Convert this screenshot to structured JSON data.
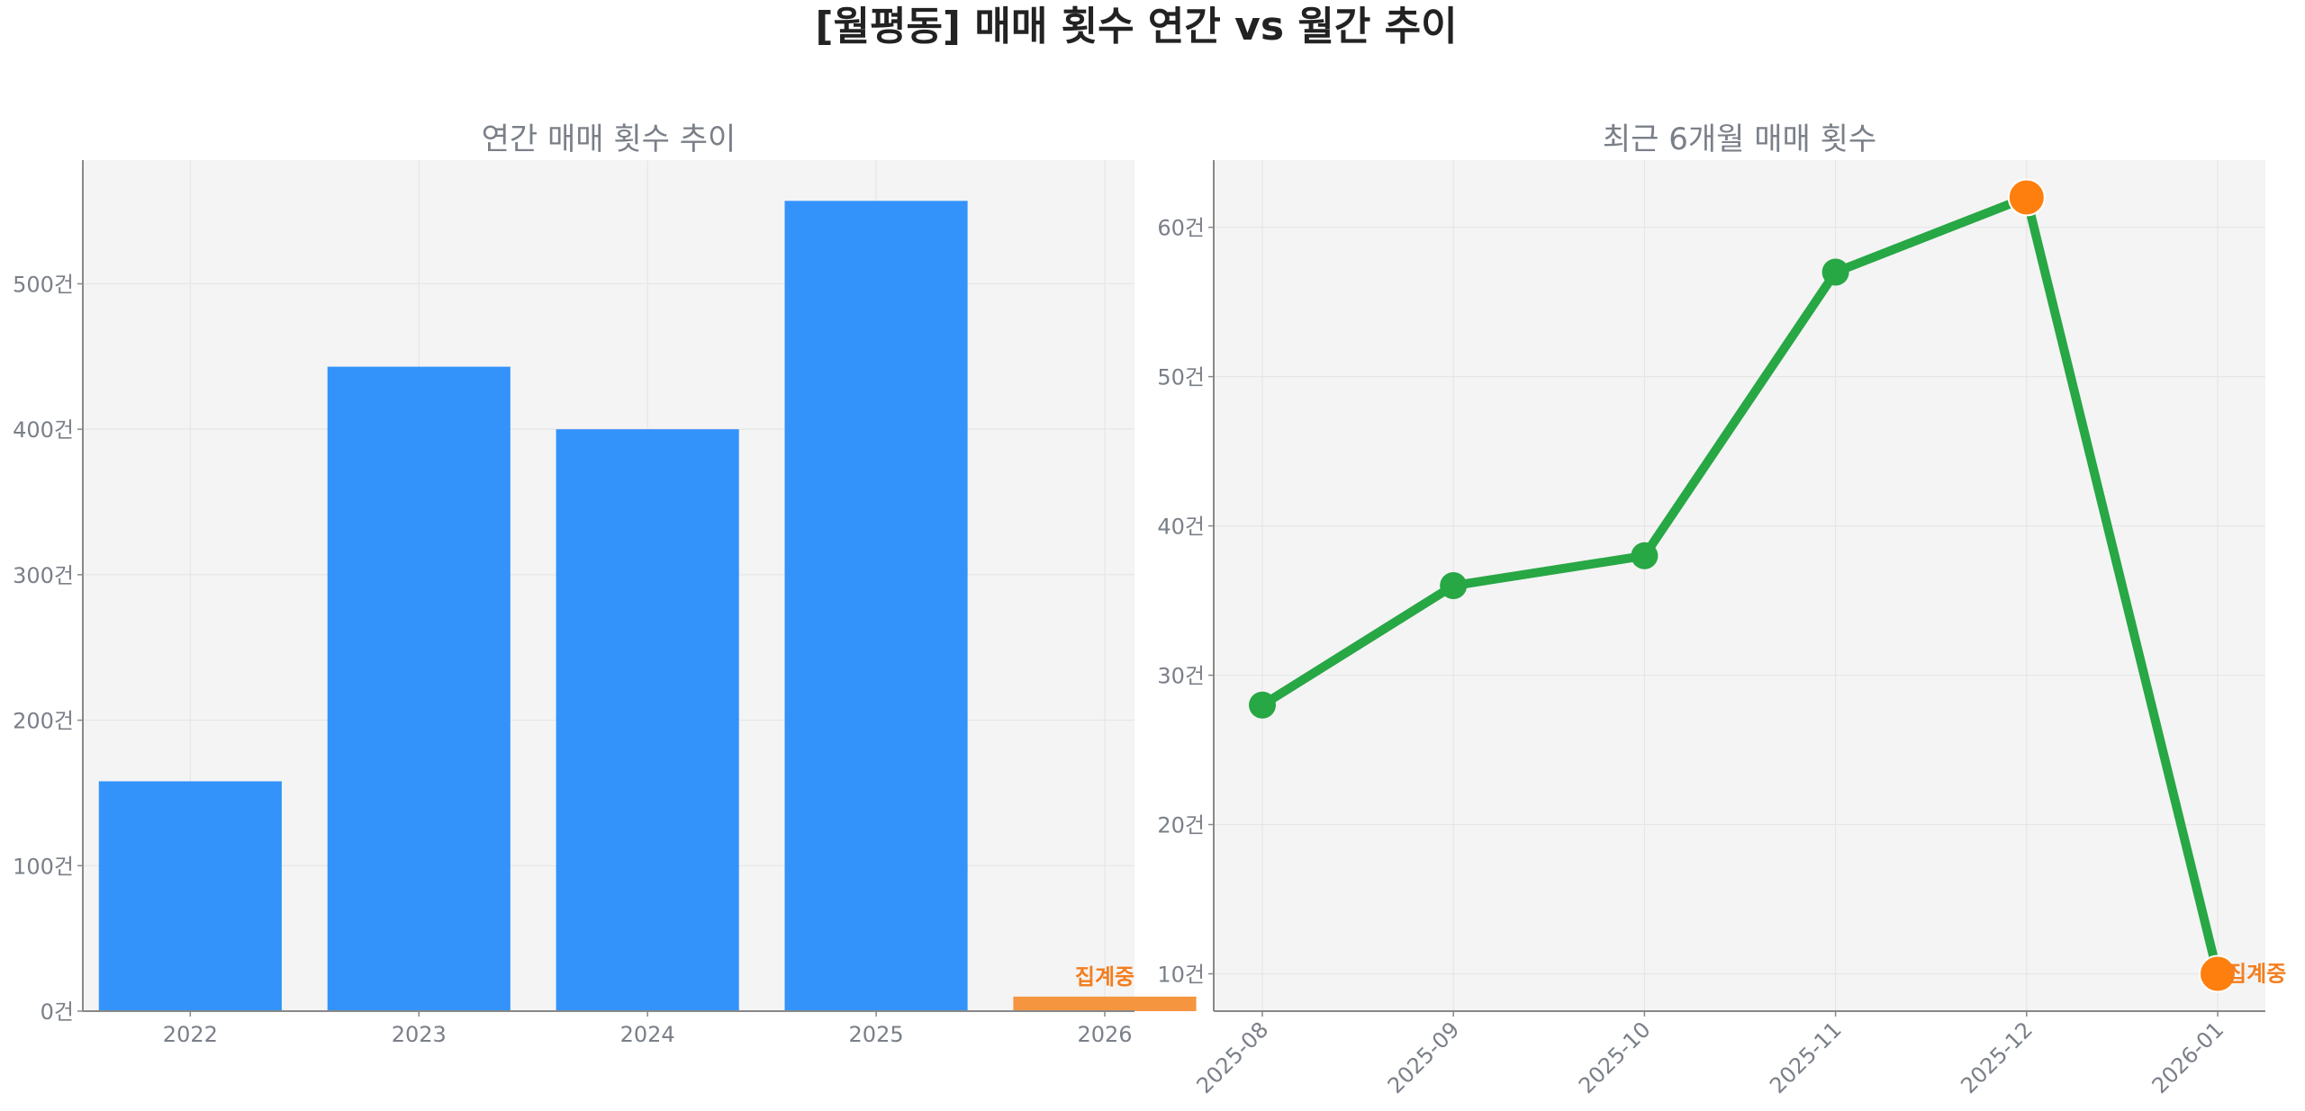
{
  "figure": {
    "title": "[월평동] 매매 횟수 연간 vs 월간 추이"
  },
  "colors": {
    "bar": "#3393fb",
    "bar_partial": "#f5953f",
    "line": "#28a745",
    "highlight": "#ff7f0e",
    "panel_bg": "#f4f4f4"
  },
  "chart_data": [
    {
      "type": "bar",
      "title": "연간 매매 횟수 추이",
      "categories": [
        "2022",
        "2023",
        "2024",
        "2025",
        "2026"
      ],
      "values": [
        158,
        443,
        400,
        557,
        10
      ],
      "ylim": [
        0,
        585
      ],
      "yticks": [
        0,
        100,
        200,
        300,
        400,
        500
      ],
      "ytick_suffix": "건",
      "grid": true,
      "annotation": {
        "category": "2026",
        "text": "집계중"
      }
    },
    {
      "type": "line",
      "title": "최근 6개월 매매 횟수",
      "categories": [
        "2025-08",
        "2025-09",
        "2025-10",
        "2025-11",
        "2025-12",
        "2026-01"
      ],
      "values": [
        28,
        36,
        38,
        57,
        62,
        10
      ],
      "ylim": [
        7.5,
        64.5
      ],
      "yticks": [
        10,
        20,
        30,
        40,
        50,
        60
      ],
      "ytick_suffix": "건",
      "grid": true,
      "highlight_points": [
        "2025-12",
        "2026-01"
      ],
      "annotation": {
        "category": "2026-01",
        "text": "집계중"
      }
    }
  ]
}
